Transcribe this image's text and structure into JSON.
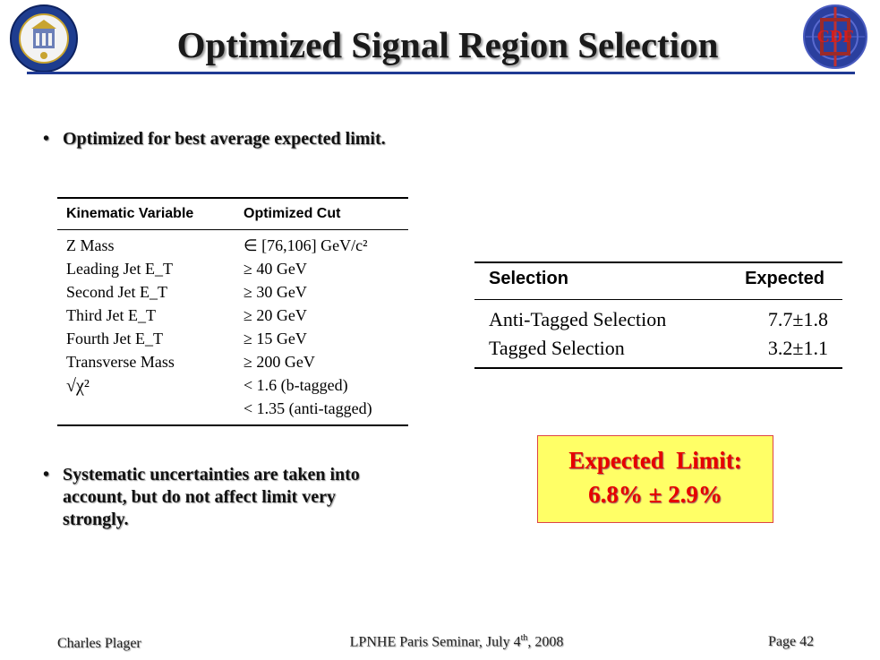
{
  "slide": {
    "title": "Optimized Signal Region Selection",
    "logos": {
      "left": "university-of-california-seal-logo",
      "right": "cdp-cdf-logo",
      "right_text": "CDF"
    }
  },
  "bullets": {
    "first": "Optimized for best average expected limit.",
    "second": "Systematic uncertainties are taken into account, but do not affect limit very strongly."
  },
  "cut_table": {
    "headers": [
      "Kinematic Variable",
      "Optimized Cut"
    ],
    "rows": [
      {
        "variable": "Z Mass",
        "cut": "∈ [76,106] GeV/c²"
      },
      {
        "variable": "Leading Jet E_T",
        "cut": "≥ 40 GeV"
      },
      {
        "variable": "Second Jet E_T",
        "cut": "≥ 30 GeV"
      },
      {
        "variable": "Third Jet E_T",
        "cut": "≥ 20 GeV"
      },
      {
        "variable": "Fourth Jet E_T",
        "cut": "≥ 15 GeV"
      },
      {
        "variable": "Transverse Mass",
        "cut": "≥ 200 GeV"
      },
      {
        "variable": "√χ²",
        "cut": "< 1.6 (b-tagged)"
      },
      {
        "variable": "",
        "cut": "< 1.35 (anti-tagged)"
      }
    ]
  },
  "selection_table": {
    "headers": [
      "Selection",
      "Expected"
    ],
    "rows": [
      {
        "name": "Anti-Tagged Selection",
        "expected": "7.7±1.8"
      },
      {
        "name": "Tagged Selection",
        "expected": "3.2±1.1"
      }
    ]
  },
  "limit_box": {
    "title": "Expected  Limit:",
    "value": "6.8% ± 2.9%",
    "background": "#ffff66",
    "text_color": "#e60000"
  },
  "footer": {
    "left": "Charles Plager",
    "center_prefix": "LPNHE Paris Seminar, July 4",
    "center_sup": "th",
    "center_suffix": ", 2008",
    "right": "Page 42"
  }
}
